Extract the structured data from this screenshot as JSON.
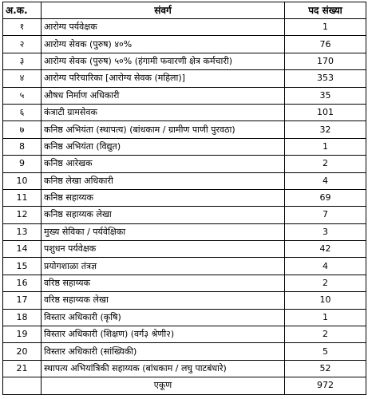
{
  "table": {
    "headers": {
      "no": "अ.क.",
      "name": "संवर्ग",
      "count": "पद संख्या"
    },
    "rows": [
      {
        "no": "१",
        "name": "आरोग्य पर्यवेक्षक",
        "count": "1"
      },
      {
        "no": "२",
        "name": "आरोग्य सेवक (पुरुष) ४०%",
        "count": "76"
      },
      {
        "no": "३",
        "name": "आरोग्य सेवक (पुरुष) ५०% (हंगामी फवारणी क्षेत्र कर्मचारी)",
        "count": "170"
      },
      {
        "no": "४",
        "name": "आरोग्य परिचारिका [आरोग्य सेवक (महिला)]",
        "count": "353"
      },
      {
        "no": "५",
        "name": "औषध निर्माण अधिकारी",
        "count": "35"
      },
      {
        "no": "६",
        "name": "कंत्राटी ग्रामसेवक",
        "count": "101"
      },
      {
        "no": "७",
        "name": "कनिष्ठ अभियंता (स्थापत्य) (बांधकाम / ग्रामीण पाणी पुरवठा)",
        "count": "32"
      },
      {
        "no": "8",
        "name": "कनिष्ठ अभियंता (विद्युत)",
        "count": "1"
      },
      {
        "no": "9",
        "name": "कनिष्ठ आरेखक",
        "count": "2"
      },
      {
        "no": "10",
        "name": "कनिष्ठ लेखा अधिकारी",
        "count": "4"
      },
      {
        "no": "11",
        "name": "कनिष्ठ सहाय्यक",
        "count": "69"
      },
      {
        "no": "12",
        "name": "कनिष्ठ सहाय्यक लेखा",
        "count": "7"
      },
      {
        "no": "13",
        "name": "मुख्य सेविका / पर्यवेक्षिका",
        "count": "3"
      },
      {
        "no": "14",
        "name": "पशुधन पर्यवेक्षक",
        "count": "42"
      },
      {
        "no": "15",
        "name": "प्रयोगशाळा तंत्रज्ञ",
        "count": "4"
      },
      {
        "no": "16",
        "name": "वरिष्ठ सहाय्यक",
        "count": "2"
      },
      {
        "no": "17",
        "name": "वरिष्ठ सहाय्यक लेखा",
        "count": "10"
      },
      {
        "no": "18",
        "name": "विस्तार अधिकारी (कृषि)",
        "count": "1"
      },
      {
        "no": "19",
        "name": "विस्तार अधिकारी (शिक्षण) (वर्ग३ श्रेणी२)",
        "count": "2"
      },
      {
        "no": "20",
        "name": "विस्तार अधिकारी (सांख्यिकी)",
        "count": "5"
      },
      {
        "no": "21",
        "name": "स्थापत्य अभियांत्रिकी सहाय्यक (बांधकाम / लघु पाटबंधारे)",
        "count": "52"
      }
    ],
    "total": {
      "label": "एकूण",
      "count": "972"
    }
  }
}
